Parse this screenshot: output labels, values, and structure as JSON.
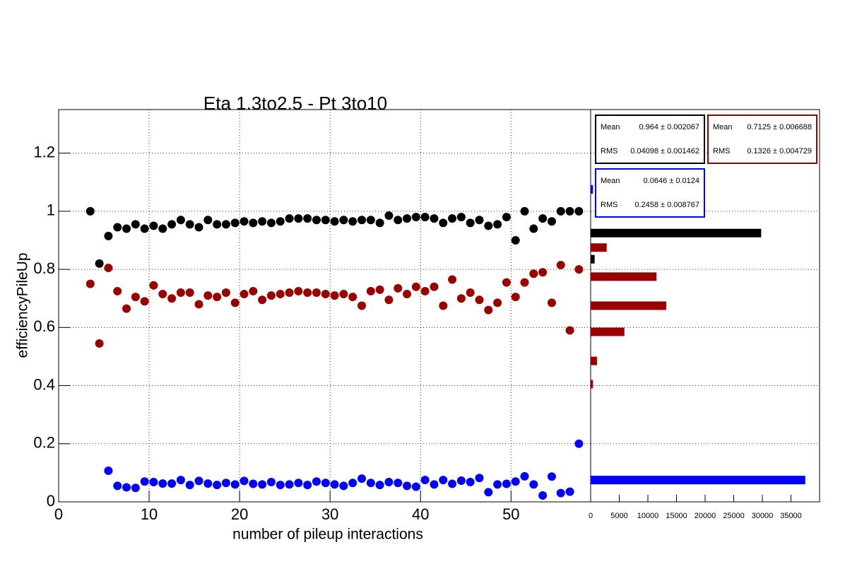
{
  "chart_data": [
    {
      "type": "scatter",
      "title": "Eta 1.3to2.5 - Pt 3to10",
      "x_label": "number of pileup interactions",
      "y_label": "efficiencyPileUp",
      "x": [
        3.5,
        4.5,
        5.5,
        6.5,
        7.5,
        8.5,
        9.5,
        10.5,
        11.5,
        12.5,
        13.5,
        14.5,
        15.5,
        16.5,
        17.5,
        18.5,
        19.5,
        20.5,
        21.5,
        22.5,
        23.5,
        24.5,
        25.5,
        26.5,
        27.5,
        28.5,
        29.5,
        30.5,
        31.5,
        32.5,
        33.5,
        34.5,
        35.5,
        36.5,
        37.5,
        38.5,
        39.5,
        40.5,
        41.5,
        42.5,
        43.5,
        44.5,
        45.5,
        46.5,
        47.5,
        48.5,
        49.5,
        50.5,
        51.5,
        52.5,
        53.5,
        54.5,
        55.5,
        56.5,
        57.5
      ],
      "series": [
        {
          "color": "#000000",
          "values": [
            1.0,
            0.82,
            0.915,
            0.945,
            0.94,
            0.955,
            0.94,
            0.95,
            0.94,
            0.955,
            0.97,
            0.955,
            0.945,
            0.97,
            0.955,
            0.955,
            0.96,
            0.965,
            0.96,
            0.965,
            0.96,
            0.965,
            0.975,
            0.975,
            0.975,
            0.97,
            0.97,
            0.965,
            0.97,
            0.965,
            0.97,
            0.97,
            0.96,
            0.985,
            0.97,
            0.975,
            0.98,
            0.98,
            0.975,
            0.96,
            0.975,
            0.98,
            0.96,
            0.97,
            0.95,
            0.955,
            0.98,
            0.9,
            1.0,
            0.94,
            0.975,
            0.965,
            1.0,
            1.0,
            1.0
          ]
        },
        {
          "color": "#990000",
          "values": [
            0.75,
            0.545,
            0.805,
            0.725,
            0.665,
            0.705,
            0.69,
            0.745,
            0.715,
            0.7,
            0.72,
            0.72,
            0.68,
            0.71,
            0.705,
            0.72,
            0.685,
            0.715,
            0.725,
            0.695,
            0.71,
            0.715,
            0.72,
            0.725,
            0.72,
            0.72,
            0.715,
            0.71,
            0.715,
            0.705,
            0.675,
            0.725,
            0.73,
            0.695,
            0.735,
            0.715,
            0.74,
            0.725,
            0.74,
            0.675,
            0.765,
            0.7,
            0.72,
            0.695,
            0.66,
            0.685,
            0.755,
            0.705,
            0.755,
            0.785,
            0.79,
            0.685,
            0.815,
            0.59,
            0.8
          ]
        },
        {
          "color": "#0000ff",
          "values": [
            null,
            null,
            0.107,
            0.055,
            0.05,
            0.048,
            0.07,
            0.068,
            0.063,
            0.063,
            0.075,
            0.058,
            0.072,
            0.063,
            0.058,
            0.065,
            0.06,
            0.072,
            0.062,
            0.06,
            0.068,
            0.058,
            0.06,
            0.065,
            0.058,
            0.07,
            0.065,
            0.06,
            0.055,
            0.065,
            0.08,
            0.065,
            0.058,
            0.068,
            0.065,
            0.055,
            0.052,
            0.075,
            0.06,
            0.075,
            0.062,
            0.073,
            0.068,
            0.082,
            0.033,
            0.06,
            0.062,
            0.07,
            0.088,
            0.06,
            0.022,
            0.087,
            0.03,
            0.035,
            0.2
          ]
        }
      ],
      "xlim": [
        0,
        58.8
      ],
      "ylim": [
        0,
        1.35
      ],
      "xticks": [
        0,
        10,
        20,
        30,
        40,
        50
      ],
      "yticks": [
        0,
        0.2,
        0.4,
        0.6,
        0.8,
        1,
        1.2
      ],
      "grid": true
    },
    {
      "type": "hbar",
      "series": [
        {
          "color": "#000000",
          "y": [
            0.925,
            0.835
          ],
          "values": [
            29800,
            700
          ]
        },
        {
          "color": "#990000",
          "y": [
            0.875,
            0.775,
            0.675,
            0.585,
            0.485,
            0.405
          ],
          "values": [
            2800,
            11500,
            13200,
            5900,
            1100,
            400
          ]
        },
        {
          "color": "#0000ff",
          "y": [
            0.075,
            1.075
          ],
          "values": [
            37500,
            400
          ]
        }
      ],
      "xlim": [
        0,
        40000
      ],
      "ylim": [
        0,
        1.35
      ],
      "xticks": [
        0,
        5000,
        10000,
        15000,
        20000,
        25000,
        30000,
        35000
      ],
      "stats": [
        {
          "color": "#000000",
          "entries": [
            {
              "label": "Mean",
              "value": "0.964 ± 0.002067"
            },
            {
              "label": "RMS",
              "value": "0.04098 ± 0.001462"
            }
          ]
        },
        {
          "color": "#990000",
          "entries": [
            {
              "label": "Mean",
              "value": "0.7125 ± 0.006688"
            },
            {
              "label": "RMS",
              "value": "0.1326 ± 0.004729"
            }
          ]
        },
        {
          "color": "#0000ff",
          "entries": [
            {
              "label": "Mean",
              "value": "0.0646 ± 0.0124"
            },
            {
              "label": "RMS",
              "value": "0.2458 ± 0.008767"
            }
          ]
        }
      ]
    }
  ]
}
